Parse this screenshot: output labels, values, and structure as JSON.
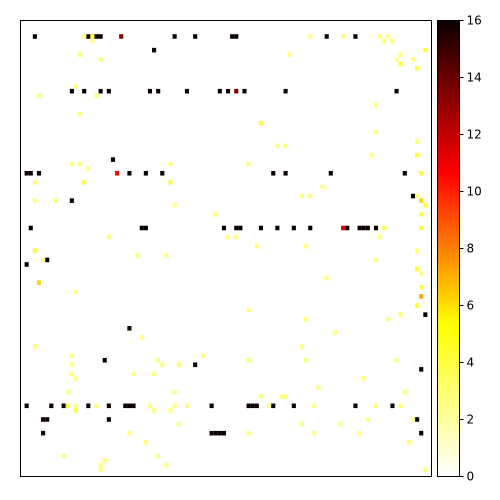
{
  "chart_data": {
    "type": "heatmap",
    "title": "",
    "xlabel": "",
    "ylabel": "",
    "axis_ticks": "none",
    "colormap": "hot_r",
    "colorbar": {
      "vmin": 0,
      "vmax": 16,
      "ticks": [
        "0",
        "2",
        "4",
        "6",
        "8",
        "10",
        "12",
        "14",
        "16"
      ],
      "position": "right"
    },
    "grid": {
      "rows": 100,
      "cols": 100
    },
    "default_value": 0,
    "cells": [
      [
        3,
        3,
        16
      ],
      [
        3,
        16,
        16
      ],
      [
        3,
        17,
        16
      ],
      [
        3,
        18,
        16
      ],
      [
        3,
        19,
        16
      ],
      [
        3,
        24,
        13
      ],
      [
        3,
        37,
        16
      ],
      [
        3,
        42,
        16
      ],
      [
        3,
        51,
        16
      ],
      [
        3,
        52,
        16
      ],
      [
        3,
        74,
        16
      ],
      [
        3,
        81,
        16
      ],
      [
        3,
        17,
        3
      ],
      [
        3,
        15,
        2
      ],
      [
        3,
        70,
        2
      ],
      [
        3,
        78,
        2
      ],
      [
        3,
        87,
        2
      ],
      [
        3,
        89,
        2
      ],
      [
        4,
        88,
        2
      ],
      [
        4,
        90,
        2
      ],
      [
        4,
        17,
        2
      ],
      [
        6,
        32,
        16
      ],
      [
        6,
        98,
        3
      ],
      [
        7,
        14,
        2
      ],
      [
        7,
        65,
        2
      ],
      [
        7,
        92,
        2
      ],
      [
        8,
        19,
        2
      ],
      [
        8,
        91,
        2
      ],
      [
        8,
        95,
        2
      ],
      [
        9,
        92,
        3
      ],
      [
        10,
        96,
        3
      ],
      [
        15,
        12,
        16
      ],
      [
        15,
        15,
        16
      ],
      [
        15,
        19,
        16
      ],
      [
        15,
        21,
        16
      ],
      [
        15,
        31,
        16
      ],
      [
        15,
        33,
        16
      ],
      [
        15,
        40,
        16
      ],
      [
        15,
        48,
        16
      ],
      [
        15,
        50,
        16
      ],
      [
        15,
        52,
        13
      ],
      [
        15,
        54,
        16
      ],
      [
        15,
        64,
        16
      ],
      [
        15,
        91,
        16
      ],
      [
        14,
        13,
        2
      ],
      [
        16,
        18,
        2
      ],
      [
        16,
        4,
        2
      ],
      [
        18,
        86,
        2
      ],
      [
        20,
        14,
        2
      ],
      [
        22,
        58,
        3
      ],
      [
        24,
        86,
        2
      ],
      [
        26,
        96,
        2
      ],
      [
        27,
        64,
        2
      ],
      [
        27,
        62,
        2
      ],
      [
        29,
        96,
        3
      ],
      [
        29,
        85,
        2
      ],
      [
        30,
        22,
        16
      ],
      [
        31,
        12,
        2
      ],
      [
        31,
        14,
        2
      ],
      [
        31,
        36,
        2
      ],
      [
        31,
        55,
        2
      ],
      [
        32,
        16,
        2
      ],
      [
        33,
        1,
        16
      ],
      [
        33,
        2,
        16
      ],
      [
        33,
        4,
        16
      ],
      [
        33,
        23,
        10
      ],
      [
        33,
        26,
        16
      ],
      [
        33,
        30,
        16
      ],
      [
        33,
        34,
        16
      ],
      [
        33,
        61,
        16
      ],
      [
        33,
        64,
        16
      ],
      [
        33,
        75,
        16
      ],
      [
        33,
        93,
        16
      ],
      [
        33,
        97,
        3
      ],
      [
        35,
        15,
        3
      ],
      [
        35,
        36,
        3
      ],
      [
        35,
        3,
        2
      ],
      [
        36,
        73,
        2
      ],
      [
        38,
        95,
        16
      ],
      [
        38,
        96,
        2
      ],
      [
        38,
        70,
        2
      ],
      [
        38,
        68,
        2
      ],
      [
        39,
        3,
        2
      ],
      [
        39,
        8,
        2
      ],
      [
        39,
        12,
        16
      ],
      [
        39,
        97,
        5
      ],
      [
        40,
        37,
        2
      ],
      [
        40,
        98,
        3
      ],
      [
        42,
        47,
        2
      ],
      [
        42,
        97,
        3
      ],
      [
        45,
        2,
        16
      ],
      [
        45,
        29,
        16
      ],
      [
        45,
        30,
        16
      ],
      [
        45,
        49,
        16
      ],
      [
        45,
        52,
        16
      ],
      [
        45,
        53,
        16
      ],
      [
        45,
        58,
        16
      ],
      [
        45,
        62,
        16
      ],
      [
        45,
        66,
        16
      ],
      [
        45,
        70,
        16
      ],
      [
        45,
        78,
        11
      ],
      [
        45,
        79,
        16
      ],
      [
        45,
        82,
        16
      ],
      [
        45,
        83,
        16
      ],
      [
        45,
        84,
        16
      ],
      [
        45,
        86,
        16
      ],
      [
        45,
        88,
        3
      ],
      [
        45,
        97,
        3
      ],
      [
        47,
        21,
        2
      ],
      [
        47,
        50,
        2
      ],
      [
        47,
        52,
        2
      ],
      [
        47,
        87,
        2
      ],
      [
        49,
        57,
        2
      ],
      [
        49,
        69,
        2
      ],
      [
        50,
        3,
        3
      ],
      [
        50,
        96,
        2
      ],
      [
        51,
        28,
        2
      ],
      [
        51,
        35,
        2
      ],
      [
        52,
        6,
        16
      ],
      [
        52,
        5,
        2
      ],
      [
        52,
        86,
        2
      ],
      [
        53,
        1,
        16
      ],
      [
        54,
        96,
        3
      ],
      [
        55,
        97,
        2
      ],
      [
        56,
        74,
        2
      ],
      [
        57,
        4,
        5
      ],
      [
        58,
        97,
        3
      ],
      [
        59,
        13,
        2
      ],
      [
        60,
        97,
        6
      ],
      [
        62,
        96,
        3
      ],
      [
        63,
        55,
        2
      ],
      [
        64,
        98,
        16
      ],
      [
        64,
        92,
        2
      ],
      [
        65,
        69,
        2
      ],
      [
        65,
        89,
        2
      ],
      [
        67,
        26,
        16
      ],
      [
        68,
        76,
        2
      ],
      [
        69,
        29,
        2
      ],
      [
        71,
        3,
        2
      ],
      [
        71,
        68,
        2
      ],
      [
        73,
        12,
        2
      ],
      [
        73,
        44,
        2
      ],
      [
        74,
        20,
        16
      ],
      [
        74,
        33,
        2
      ],
      [
        74,
        55,
        2
      ],
      [
        74,
        69,
        2
      ],
      [
        74,
        91,
        2
      ],
      [
        75,
        12,
        2
      ],
      [
        75,
        42,
        16
      ],
      [
        75,
        34,
        2
      ],
      [
        75,
        38,
        2
      ],
      [
        76,
        97,
        16
      ],
      [
        77,
        12,
        2
      ],
      [
        77,
        27,
        2
      ],
      [
        77,
        32,
        2
      ],
      [
        78,
        13,
        2
      ],
      [
        78,
        83,
        2
      ],
      [
        80,
        72,
        2
      ],
      [
        81,
        93,
        2
      ],
      [
        81,
        11,
        2
      ],
      [
        81,
        37,
        2
      ],
      [
        82,
        64,
        2
      ],
      [
        82,
        58,
        2
      ],
      [
        82,
        63,
        2
      ],
      [
        84,
        1,
        16
      ],
      [
        84,
        7,
        16
      ],
      [
        84,
        10,
        16
      ],
      [
        84,
        11,
        3
      ],
      [
        84,
        13,
        2
      ],
      [
        84,
        16,
        16
      ],
      [
        84,
        18,
        2
      ],
      [
        84,
        21,
        16
      ],
      [
        84,
        25,
        16
      ],
      [
        84,
        26,
        16
      ],
      [
        84,
        27,
        16
      ],
      [
        84,
        31,
        2
      ],
      [
        84,
        37,
        2
      ],
      [
        84,
        40,
        2
      ],
      [
        84,
        46,
        16
      ],
      [
        84,
        55,
        16
      ],
      [
        84,
        56,
        16
      ],
      [
        84,
        57,
        16
      ],
      [
        84,
        60,
        2
      ],
      [
        84,
        61,
        16
      ],
      [
        84,
        66,
        16
      ],
      [
        84,
        71,
        2
      ],
      [
        84,
        81,
        16
      ],
      [
        84,
        86,
        2
      ],
      [
        84,
        90,
        16
      ],
      [
        84,
        92,
        2
      ],
      [
        85,
        13,
        3
      ],
      [
        85,
        32,
        2
      ],
      [
        85,
        36,
        2
      ],
      [
        87,
        5,
        16
      ],
      [
        87,
        6,
        16
      ],
      [
        87,
        21,
        16
      ],
      [
        87,
        96,
        16
      ],
      [
        87,
        95,
        2
      ],
      [
        87,
        84,
        2
      ],
      [
        88,
        38,
        2
      ],
      [
        88,
        68,
        2
      ],
      [
        88,
        77,
        2
      ],
      [
        90,
        5,
        16
      ],
      [
        90,
        46,
        16
      ],
      [
        90,
        47,
        16
      ],
      [
        90,
        48,
        16
      ],
      [
        90,
        49,
        16
      ],
      [
        90,
        55,
        2
      ],
      [
        90,
        71,
        2
      ],
      [
        90,
        82,
        2
      ],
      [
        90,
        97,
        16
      ],
      [
        90,
        26,
        2
      ],
      [
        92,
        94,
        2
      ],
      [
        92,
        30,
        2
      ],
      [
        95,
        10,
        2
      ],
      [
        95,
        33,
        2
      ],
      [
        96,
        20,
        2
      ],
      [
        97,
        19,
        2
      ],
      [
        97,
        35,
        2
      ],
      [
        98,
        19,
        2
      ],
      [
        98,
        98,
        2
      ]
    ]
  }
}
